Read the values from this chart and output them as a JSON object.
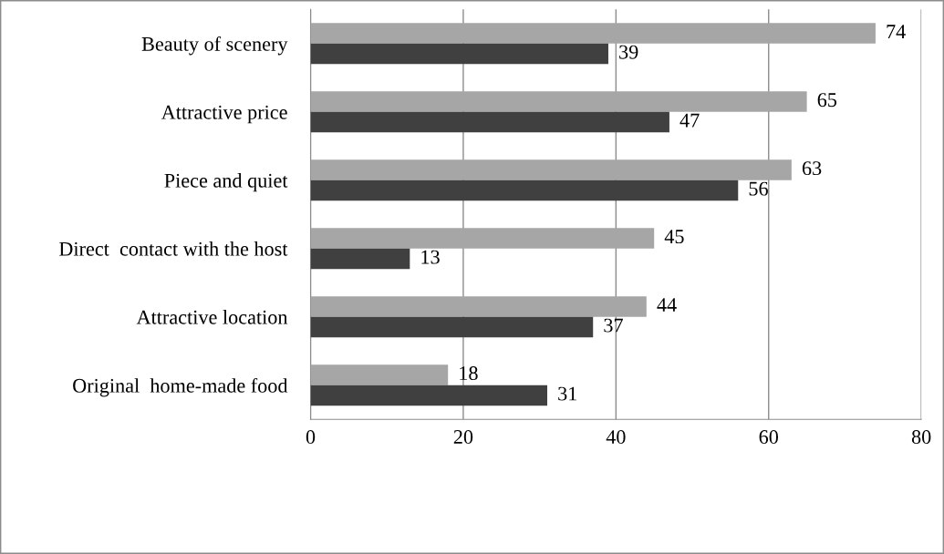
{
  "chart_data": {
    "type": "bar",
    "orientation": "horizontal",
    "categories": [
      "Beauty of scenery",
      "Attractive price",
      "Piece and quiet",
      "Direct  contact with the host",
      "Attractive location",
      "Original  home-made food"
    ],
    "series": [
      {
        "color": "#a6a6a6",
        "values": [
          74,
          65,
          63,
          45,
          44,
          18
        ]
      },
      {
        "color": "#404040",
        "values": [
          39,
          47,
          56,
          13,
          37,
          31
        ]
      }
    ],
    "xlim": [
      0,
      80
    ],
    "xticks": [
      0,
      20,
      40,
      60,
      80
    ],
    "grid": "x",
    "data_labels": true
  }
}
